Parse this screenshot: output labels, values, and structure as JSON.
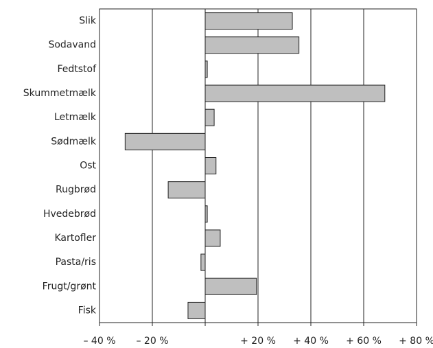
{
  "chart_data": {
    "type": "barh",
    "categories": [
      "Slik",
      "Sodavand",
      "Fedtstof",
      "Skummetmælk",
      "Letmælk",
      "Sødmælk",
      "Ost",
      "Rugbrød",
      "Hvedebrød",
      "Kartofler",
      "Pasta/ris",
      "Frugt/grønt",
      "Fisk"
    ],
    "values": [
      33,
      35.5,
      0.8,
      68,
      3.4,
      -30.3,
      4.1,
      -14,
      0.8,
      5.7,
      -1.6,
      19.4,
      -6.5
    ],
    "color": "#bfbfbf",
    "xlim": [
      -40,
      80
    ],
    "xticks": [
      {
        "value": -40,
        "label": "– 40 %"
      },
      {
        "value": -20,
        "label": "– 20 %"
      },
      0,
      {
        "value": 20,
        "label": "+ 20 %"
      },
      {
        "value": 40,
        "label": "+ 40 %"
      },
      {
        "value": 60,
        "label": "+ 60 %"
      },
      {
        "value": 80,
        "label": "+ 80 %"
      }
    ],
    "grid": true
  }
}
